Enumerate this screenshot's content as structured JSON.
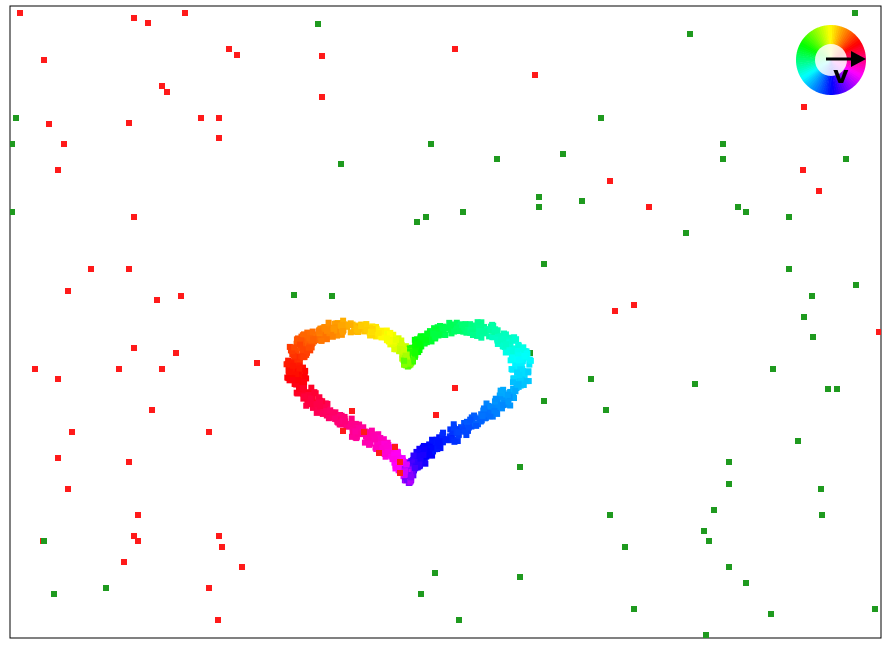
{
  "view": {
    "colors": {
      "frame": "#000000",
      "background": "#ffffff",
      "left_particles": "#ff1a1a",
      "right_particles": "#1f9a1f"
    },
    "heart_icon": "heart-flow-icon",
    "legend": {
      "icon": "color-wheel-icon",
      "arrow_icon": "arrow-right-icon",
      "label": "v"
    }
  }
}
